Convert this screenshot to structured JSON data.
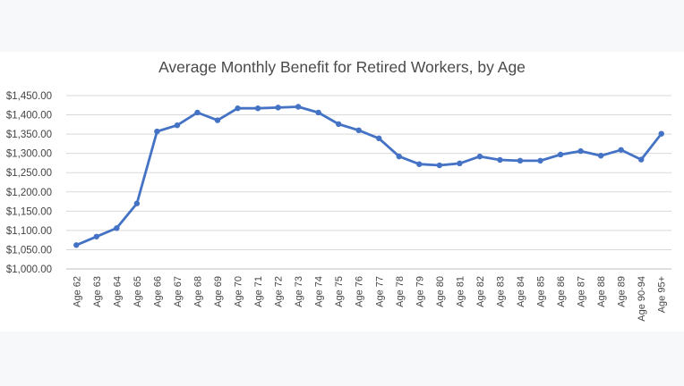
{
  "chart_data": {
    "type": "line",
    "title": "Average Monthly Benefit for Retired Workers, by Age",
    "xlabel": "",
    "ylabel": "",
    "ylim": [
      1000,
      1450
    ],
    "y_ticks": [
      1000,
      1050,
      1100,
      1150,
      1200,
      1250,
      1300,
      1350,
      1400,
      1450
    ],
    "y_tick_labels": [
      "$1,000.00",
      "$1,050.00",
      "$1,100.00",
      "$1,150.00",
      "$1,200.00",
      "$1,250.00",
      "$1,300.00",
      "$1,350.00",
      "$1,400.00",
      "$1,450.00"
    ],
    "grid": true,
    "legend": "none",
    "color": "#4472c4",
    "categories": [
      "Age 62",
      "Age 63",
      "Age 64",
      "Age 65",
      "Age 66",
      "Age 67",
      "Age 68",
      "Age 69",
      "Age 70",
      "Age 71",
      "Age 72",
      "Age 73",
      "Age 74",
      "Age 75",
      "Age 76",
      "Age 77",
      "Age 78",
      "Age 79",
      "Age 80",
      "Age 81",
      "Age 82",
      "Age 83",
      "Age 84",
      "Age 85",
      "Age 86",
      "Age 87",
      "Age 88",
      "Age 89",
      "Age 90-94",
      "Age 95+"
    ],
    "series": [
      {
        "values": [
          1062,
          1084,
          1106,
          1170,
          1357,
          1373,
          1406,
          1386,
          1417,
          1417,
          1419,
          1421,
          1406,
          1376,
          1360,
          1339,
          1292,
          1272,
          1269,
          1274,
          1292,
          1283,
          1281,
          1281,
          1297,
          1306,
          1294,
          1309,
          1284,
          1351
        ]
      }
    ]
  }
}
